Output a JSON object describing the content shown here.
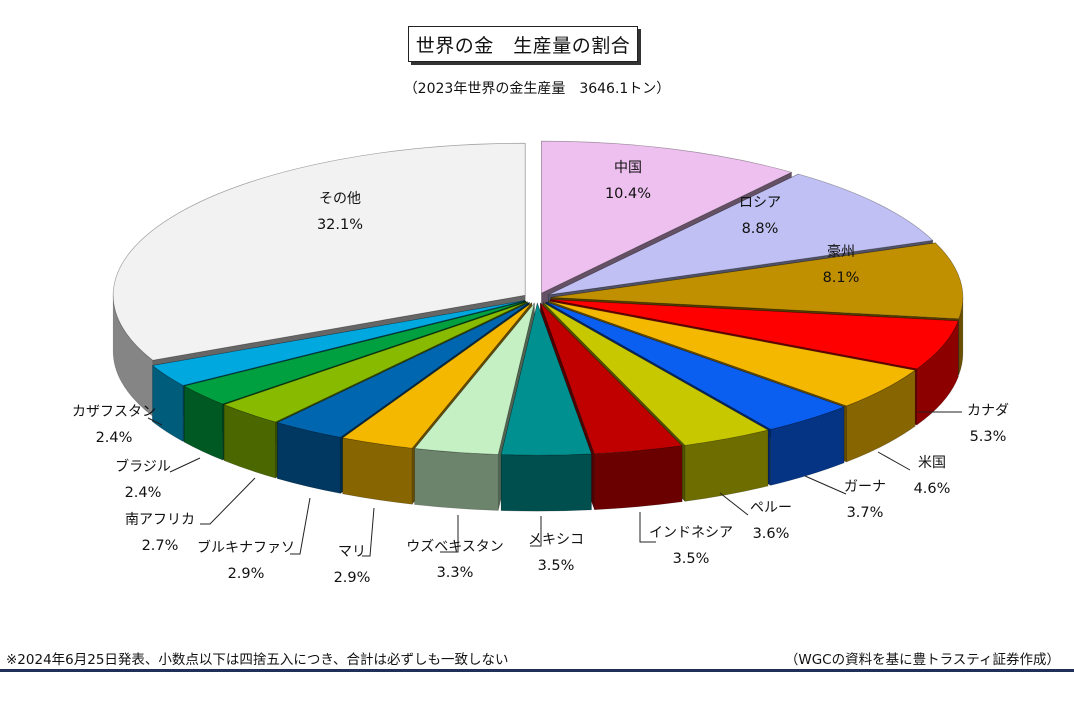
{
  "title": "世界の金　生産量の割合",
  "subtitle": "（2023年世界の金生産量　3646.1トン）",
  "footnote": "※2024年6月25日発表、小数点以下は四捨五入につき、合計は必ずしも一致しない",
  "source": "（WGCの資料を基に豊トラスティ証券作成）",
  "chart_data": {
    "type": "pie",
    "title": "世界の金　生産量の割合",
    "subtitle": "（2023年世界の金生産量　3646.1トン）",
    "slices": [
      {
        "label": "中国",
        "value": 10.4,
        "display": "10.4%",
        "color": "#eec0f0"
      },
      {
        "label": "ロシア",
        "value": 8.8,
        "display": "8.8%",
        "color": "#c0c0f4"
      },
      {
        "label": "豪州",
        "value": 8.1,
        "display": "8.1%",
        "color": "#c09000"
      },
      {
        "label": "カナダ",
        "value": 5.3,
        "display": "5.3%",
        "color": "#ff0000"
      },
      {
        "label": "米国",
        "value": 4.6,
        "display": "4.6%",
        "color": "#f5b800"
      },
      {
        "label": "ガーナ",
        "value": 3.7,
        "display": "3.7%",
        "color": "#0a5ff0"
      },
      {
        "label": "ペルー",
        "value": 3.6,
        "display": "3.6%",
        "color": "#c8c800"
      },
      {
        "label": "インドネシア",
        "value": 3.5,
        "display": "3.5%",
        "color": "#c00000"
      },
      {
        "label": "メキシコ",
        "value": 3.5,
        "display": "3.5%",
        "color": "#009090"
      },
      {
        "label": "ウズベキスタン",
        "value": 3.3,
        "display": "3.3%",
        "color": "#c4f0c4"
      },
      {
        "label": "マリ",
        "value": 2.9,
        "display": "2.9%",
        "color": "#f5b800"
      },
      {
        "label": "ブルキナファソ",
        "value": 2.9,
        "display": "2.9%",
        "color": "#0066b0"
      },
      {
        "label": "南アフリカ",
        "value": 2.7,
        "display": "2.7%",
        "color": "#88bb00"
      },
      {
        "label": "ブラジル",
        "value": 2.4,
        "display": "2.4%",
        "color": "#00a040"
      },
      {
        "label": "カザフスタン",
        "value": 2.4,
        "display": "2.4%",
        "color": "#00a8e0"
      },
      {
        "label": "その他",
        "value": 32.1,
        "display": "32.1%",
        "color": "#f2f2f2"
      }
    ]
  }
}
